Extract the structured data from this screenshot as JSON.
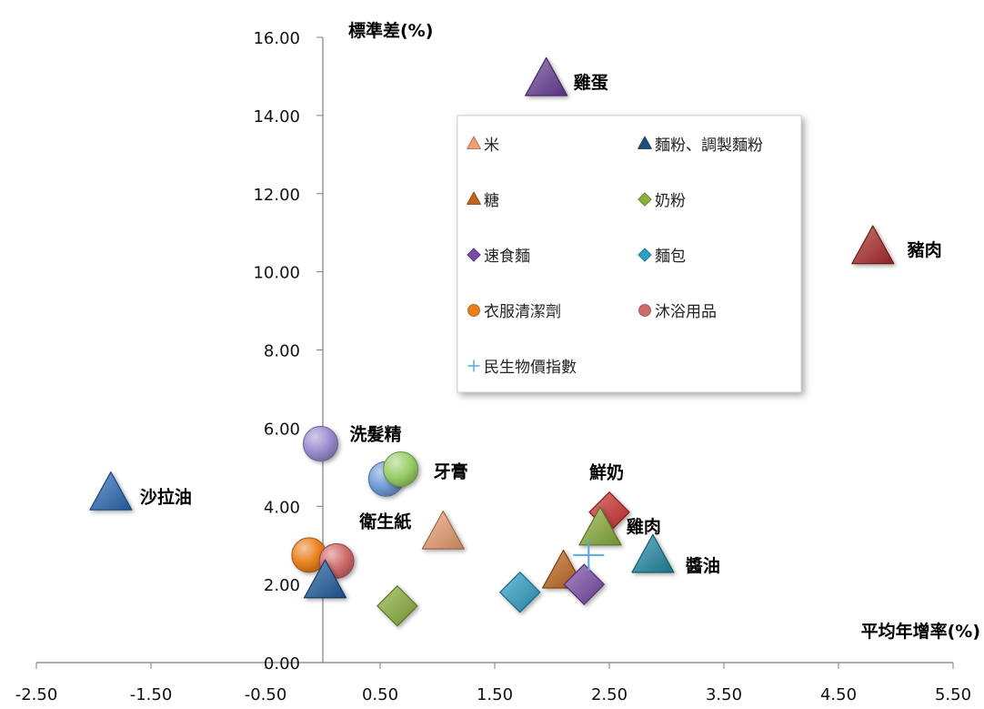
{
  "chart_data": {
    "type": "scatter",
    "xlabel": "平均年增率(%)",
    "ylabel": "標準差(%)",
    "xlim": [
      -2.5,
      5.5
    ],
    "ylim": [
      0,
      16
    ],
    "x_ticks": [
      "-2.50",
      "-1.50",
      "-0.50",
      "0.50",
      "1.50",
      "2.50",
      "3.50",
      "4.50",
      "5.50"
    ],
    "y_ticks": [
      "0.00",
      "2.00",
      "4.00",
      "6.00",
      "8.00",
      "10.00",
      "12.00",
      "14.00",
      "16.00"
    ],
    "grid": false,
    "legend_position": "upper-right",
    "legend": [
      {
        "label": "米",
        "marker": "triangle",
        "color": "#f0a070"
      },
      {
        "label": "麵粉、調製麵粉",
        "marker": "triangle",
        "color": "#1f4e79"
      },
      {
        "label": "糖",
        "marker": "triangle",
        "color": "#c0651a"
      },
      {
        "label": "奶粉",
        "marker": "diamond",
        "color": "#8cb13a"
      },
      {
        "label": "速食麵",
        "marker": "diamond",
        "color": "#7a4aa8"
      },
      {
        "label": "麵包",
        "marker": "diamond",
        "color": "#2aa0c8"
      },
      {
        "label": "衣服清潔劑",
        "marker": "circle",
        "color": "#e8801c"
      },
      {
        "label": "沐浴用品",
        "marker": "circle",
        "color": "#d06a6a"
      },
      {
        "label": "民生物價指數",
        "marker": "plus",
        "color": "#5aaad8"
      }
    ],
    "points": [
      {
        "label": "雞蛋",
        "x": 1.95,
        "y": 14.9,
        "marker": "triangle",
        "color": "#6a3f9a"
      },
      {
        "label": "豬肉",
        "x": 4.8,
        "y": 10.6,
        "marker": "triangle",
        "color": "#b02a2a"
      },
      {
        "label": "沙拉油",
        "x": -1.85,
        "y": 4.3,
        "marker": "triangle",
        "color": "#2a6cb8"
      },
      {
        "label": "洗髮精",
        "x": -0.02,
        "y": 5.6,
        "marker": "circle",
        "color": "#9b8ccf"
      },
      {
        "label": "",
        "x": 0.55,
        "y": 4.7,
        "marker": "circle",
        "color": "#6f9bd6"
      },
      {
        "label": "牙膏",
        "x": 0.68,
        "y": 4.95,
        "marker": "circle",
        "color": "#9acd68"
      },
      {
        "label": "衛生紙",
        "x": 1.05,
        "y": 3.3,
        "marker": "triangle",
        "color": "#f0a070"
      },
      {
        "label": "",
        "x": -0.12,
        "y": 2.75,
        "marker": "circle",
        "color": "#e8801c"
      },
      {
        "label": "",
        "x": 0.12,
        "y": 2.6,
        "marker": "circle",
        "color": "#d06a6a"
      },
      {
        "label": "",
        "x": 0.02,
        "y": 2.05,
        "marker": "triangle",
        "color": "#1f5ea0"
      },
      {
        "label": "",
        "x": 0.65,
        "y": 1.45,
        "marker": "diamond",
        "color": "#8cb13a"
      },
      {
        "label": "鮮奶",
        "x": 2.5,
        "y": 3.85,
        "marker": "diamond",
        "color": "#d03030"
      },
      {
        "label": "雞肉",
        "x": 2.42,
        "y": 3.4,
        "marker": "triangle",
        "color": "#8cb13a"
      },
      {
        "label": "醬油",
        "x": 2.88,
        "y": 2.7,
        "marker": "triangle",
        "color": "#1f8ca8"
      },
      {
        "label": "",
        "x": 2.1,
        "y": 2.3,
        "marker": "triangle",
        "color": "#c0651a"
      },
      {
        "label": "",
        "x": 1.72,
        "y": 1.8,
        "marker": "diamond",
        "color": "#2aa0c8"
      },
      {
        "label": "",
        "x": 2.28,
        "y": 2.0,
        "marker": "diamond",
        "color": "#7a4aa8"
      },
      {
        "label": "",
        "x": 2.32,
        "y": 2.75,
        "marker": "plus",
        "color": "#5aaad8"
      }
    ]
  }
}
